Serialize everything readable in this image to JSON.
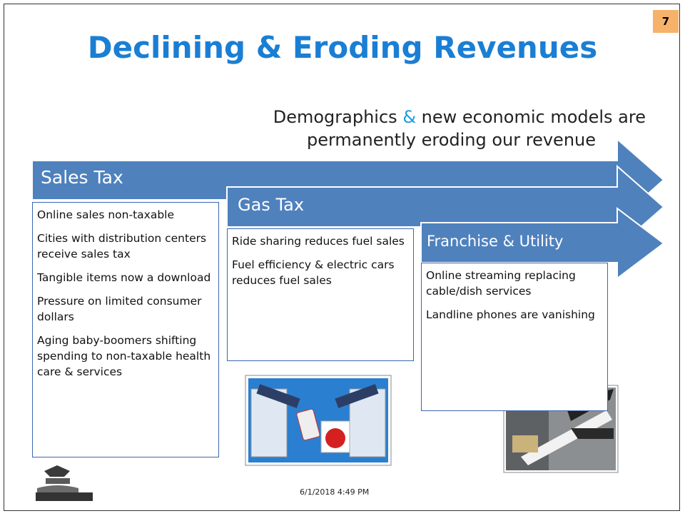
{
  "page_number": "7",
  "title": "Declining & Eroding Revenues",
  "subtitle": {
    "line1_before": "Demographics",
    "amp": "&",
    "line1_after": "new economic models are",
    "line2": "permanently eroding our revenue"
  },
  "arrows": [
    {
      "label": "Sales Tax",
      "items": [
        "Online sales non-taxable",
        "Cities with distribution centers receive sales tax",
        "Tangible items now a download",
        "Pressure on limited consumer dollars",
        "Aging baby-boomers shifting spending to non-taxable health care & services"
      ]
    },
    {
      "label": "Gas Tax",
      "items": [
        "Ride sharing reduces fuel sales",
        "Fuel efficiency & electric cars reduces fuel sales"
      ]
    },
    {
      "label": "Franchise & Utility",
      "items": [
        "Online streaming replacing cable/dish services",
        "Landline phones are vanishing"
      ]
    }
  ],
  "footer": {
    "date": "6/1/2018 4:49 PM"
  }
}
